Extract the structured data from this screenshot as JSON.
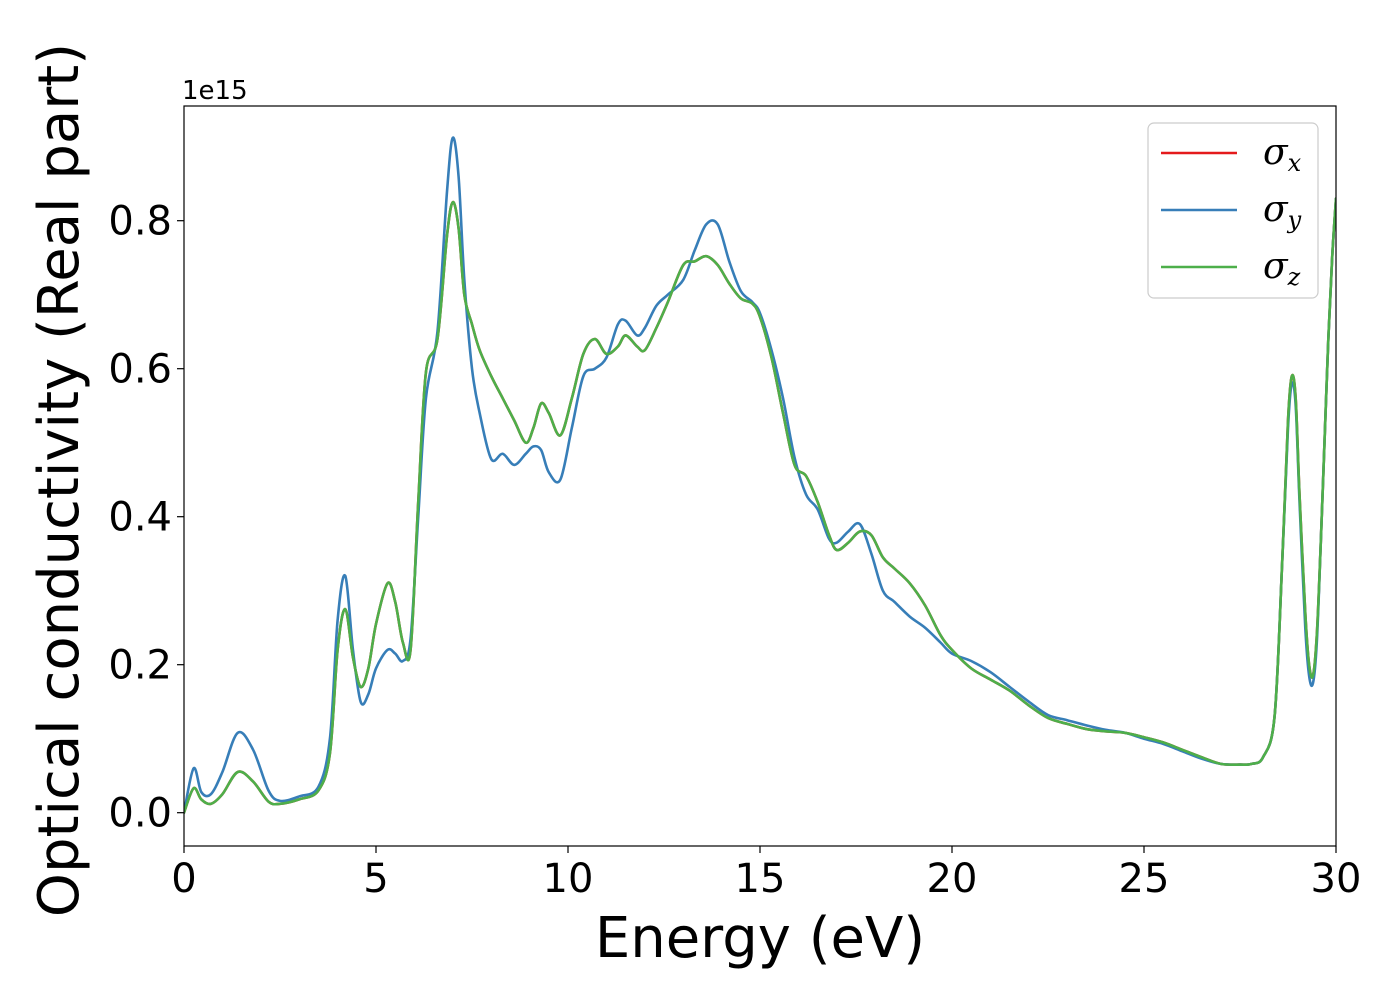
{
  "chart_data": {
    "type": "line",
    "title": "",
    "xlabel": "Energy (eV)",
    "ylabel": "Optical conductivity (Real part)",
    "y_offset_label": "1e15",
    "xlim": [
      0,
      30
    ],
    "ylim": [
      -0.045,
      0.955
    ],
    "xticks": [
      0,
      5,
      10,
      15,
      20,
      25,
      30
    ],
    "xtick_labels": [
      "0",
      "5",
      "10",
      "15",
      "20",
      "25",
      "30"
    ],
    "yticks": [
      0.0,
      0.2,
      0.4,
      0.6,
      0.8
    ],
    "ytick_labels": [
      "0.0",
      "0.2",
      "0.4",
      "0.6",
      "0.8"
    ],
    "grid": false,
    "legend_position": "top-right",
    "series": [
      {
        "name": "σx",
        "symbol": "σ",
        "subscript": "x",
        "color": "#e41a1c",
        "x": [
          0,
          0.25,
          0.45,
          0.7,
          1.0,
          1.4,
          1.8,
          2.2,
          2.5,
          3.0,
          3.5,
          3.8,
          4.0,
          4.2,
          4.4,
          4.6,
          4.8,
          5.0,
          5.3,
          5.5,
          5.7,
          5.9,
          6.1,
          6.3,
          6.6,
          6.85,
          7.0,
          7.15,
          7.3,
          7.5,
          7.7,
          8.0,
          8.3,
          8.6,
          8.9,
          9.1,
          9.3,
          9.5,
          9.8,
          10.1,
          10.4,
          10.7,
          11.0,
          11.3,
          11.5,
          11.8,
          12.0,
          12.3,
          12.6,
          13.0,
          13.3,
          13.6,
          13.9,
          14.2,
          14.5,
          14.8,
          15.0,
          15.3,
          15.6,
          15.9,
          16.2,
          16.5,
          16.8,
          17.0,
          17.3,
          17.6,
          17.9,
          18.2,
          18.5,
          18.9,
          19.3,
          19.7,
          20.0,
          20.5,
          21.0,
          21.5,
          22.0,
          22.5,
          23.0,
          23.5,
          24.0,
          24.5,
          25.0,
          25.5,
          26.0,
          26.5,
          27.0,
          27.5,
          27.8,
          28.1,
          28.4,
          28.6,
          28.75,
          28.85,
          28.95,
          29.05,
          29.2,
          29.3,
          29.4,
          29.5,
          29.6,
          29.7,
          29.8,
          29.9,
          30.0
        ],
        "y": [
          0.0,
          0.033,
          0.018,
          0.012,
          0.025,
          0.055,
          0.042,
          0.015,
          0.012,
          0.018,
          0.03,
          0.08,
          0.22,
          0.275,
          0.21,
          0.17,
          0.195,
          0.255,
          0.31,
          0.285,
          0.23,
          0.22,
          0.42,
          0.595,
          0.64,
          0.78,
          0.825,
          0.79,
          0.7,
          0.66,
          0.625,
          0.59,
          0.56,
          0.53,
          0.5,
          0.52,
          0.553,
          0.54,
          0.51,
          0.56,
          0.62,
          0.64,
          0.62,
          0.63,
          0.645,
          0.63,
          0.625,
          0.655,
          0.69,
          0.74,
          0.745,
          0.752,
          0.74,
          0.715,
          0.695,
          0.688,
          0.67,
          0.615,
          0.54,
          0.47,
          0.455,
          0.42,
          0.375,
          0.355,
          0.365,
          0.38,
          0.375,
          0.345,
          0.33,
          0.31,
          0.28,
          0.24,
          0.22,
          0.195,
          0.18,
          0.165,
          0.145,
          0.128,
          0.12,
          0.113,
          0.11,
          0.108,
          0.102,
          0.095,
          0.085,
          0.075,
          0.066,
          0.065,
          0.066,
          0.075,
          0.13,
          0.34,
          0.53,
          0.59,
          0.56,
          0.43,
          0.27,
          0.2,
          0.185,
          0.24,
          0.36,
          0.5,
          0.64,
          0.75,
          0.83
        ]
      },
      {
        "name": "σy",
        "symbol": "σ",
        "subscript": "y",
        "color": "#377eb8",
        "x": [
          0,
          0.25,
          0.45,
          0.7,
          1.0,
          1.4,
          1.8,
          2.2,
          2.5,
          3.0,
          3.5,
          3.8,
          4.0,
          4.2,
          4.4,
          4.6,
          4.8,
          5.0,
          5.3,
          5.5,
          5.7,
          5.9,
          6.1,
          6.3,
          6.6,
          6.85,
          7.0,
          7.15,
          7.3,
          7.5,
          7.7,
          8.0,
          8.3,
          8.6,
          8.9,
          9.1,
          9.3,
          9.5,
          9.8,
          10.1,
          10.4,
          10.7,
          11.0,
          11.3,
          11.5,
          11.8,
          12.0,
          12.3,
          12.6,
          13.0,
          13.3,
          13.6,
          13.9,
          14.2,
          14.5,
          14.8,
          15.0,
          15.3,
          15.6,
          15.9,
          16.2,
          16.5,
          16.8,
          17.0,
          17.3,
          17.6,
          17.9,
          18.2,
          18.5,
          18.9,
          19.3,
          19.7,
          20.0,
          20.5,
          21.0,
          21.5,
          22.0,
          22.5,
          23.0,
          23.5,
          24.0,
          24.5,
          25.0,
          25.5,
          26.0,
          26.5,
          27.0,
          27.5,
          27.8,
          28.1,
          28.4,
          28.6,
          28.75,
          28.85,
          28.95,
          29.05,
          29.2,
          29.3,
          29.4,
          29.5,
          29.6,
          29.7,
          29.8,
          29.9,
          30.0
        ],
        "y": [
          0.0,
          0.06,
          0.028,
          0.025,
          0.055,
          0.108,
          0.085,
          0.03,
          0.016,
          0.022,
          0.035,
          0.1,
          0.26,
          0.32,
          0.22,
          0.15,
          0.16,
          0.195,
          0.22,
          0.215,
          0.205,
          0.235,
          0.4,
          0.56,
          0.65,
          0.84,
          0.912,
          0.86,
          0.72,
          0.6,
          0.54,
          0.478,
          0.485,
          0.47,
          0.485,
          0.495,
          0.49,
          0.46,
          0.45,
          0.52,
          0.59,
          0.6,
          0.615,
          0.66,
          0.665,
          0.645,
          0.655,
          0.685,
          0.7,
          0.72,
          0.76,
          0.795,
          0.795,
          0.745,
          0.705,
          0.69,
          0.675,
          0.625,
          0.56,
          0.48,
          0.43,
          0.41,
          0.37,
          0.365,
          0.38,
          0.39,
          0.35,
          0.3,
          0.285,
          0.265,
          0.25,
          0.23,
          0.215,
          0.205,
          0.19,
          0.17,
          0.15,
          0.132,
          0.125,
          0.118,
          0.112,
          0.108,
          0.1,
          0.093,
          0.083,
          0.073,
          0.066,
          0.065,
          0.066,
          0.075,
          0.13,
          0.34,
          0.52,
          0.58,
          0.55,
          0.42,
          0.25,
          0.185,
          0.175,
          0.23,
          0.36,
          0.5,
          0.64,
          0.75,
          0.83
        ]
      },
      {
        "name": "σz",
        "symbol": "σ",
        "subscript": "z",
        "color": "#4daf4a",
        "x": [
          0,
          0.25,
          0.45,
          0.7,
          1.0,
          1.4,
          1.8,
          2.2,
          2.5,
          3.0,
          3.5,
          3.8,
          4.0,
          4.2,
          4.4,
          4.6,
          4.8,
          5.0,
          5.3,
          5.5,
          5.7,
          5.9,
          6.1,
          6.3,
          6.6,
          6.85,
          7.0,
          7.15,
          7.3,
          7.5,
          7.7,
          8.0,
          8.3,
          8.6,
          8.9,
          9.1,
          9.3,
          9.5,
          9.8,
          10.1,
          10.4,
          10.7,
          11.0,
          11.3,
          11.5,
          11.8,
          12.0,
          12.3,
          12.6,
          13.0,
          13.3,
          13.6,
          13.9,
          14.2,
          14.5,
          14.8,
          15.0,
          15.3,
          15.6,
          15.9,
          16.2,
          16.5,
          16.8,
          17.0,
          17.3,
          17.6,
          17.9,
          18.2,
          18.5,
          18.9,
          19.3,
          19.7,
          20.0,
          20.5,
          21.0,
          21.5,
          22.0,
          22.5,
          23.0,
          23.5,
          24.0,
          24.5,
          25.0,
          25.5,
          26.0,
          26.5,
          27.0,
          27.5,
          27.8,
          28.1,
          28.4,
          28.6,
          28.75,
          28.85,
          28.95,
          29.05,
          29.2,
          29.3,
          29.4,
          29.5,
          29.6,
          29.7,
          29.8,
          29.9,
          30.0
        ],
        "y": [
          0.0,
          0.033,
          0.018,
          0.012,
          0.025,
          0.055,
          0.042,
          0.015,
          0.012,
          0.018,
          0.03,
          0.08,
          0.22,
          0.275,
          0.21,
          0.17,
          0.195,
          0.255,
          0.31,
          0.285,
          0.23,
          0.22,
          0.42,
          0.595,
          0.64,
          0.78,
          0.825,
          0.79,
          0.7,
          0.66,
          0.625,
          0.59,
          0.56,
          0.53,
          0.5,
          0.52,
          0.553,
          0.54,
          0.51,
          0.56,
          0.62,
          0.64,
          0.62,
          0.63,
          0.645,
          0.63,
          0.625,
          0.655,
          0.69,
          0.74,
          0.745,
          0.752,
          0.74,
          0.715,
          0.695,
          0.688,
          0.67,
          0.615,
          0.54,
          0.47,
          0.455,
          0.42,
          0.375,
          0.355,
          0.365,
          0.38,
          0.375,
          0.345,
          0.33,
          0.31,
          0.28,
          0.24,
          0.22,
          0.195,
          0.18,
          0.165,
          0.145,
          0.128,
          0.12,
          0.113,
          0.11,
          0.108,
          0.102,
          0.095,
          0.085,
          0.075,
          0.066,
          0.065,
          0.066,
          0.075,
          0.13,
          0.34,
          0.53,
          0.59,
          0.56,
          0.43,
          0.27,
          0.2,
          0.185,
          0.24,
          0.36,
          0.5,
          0.64,
          0.75,
          0.83
        ]
      }
    ]
  }
}
